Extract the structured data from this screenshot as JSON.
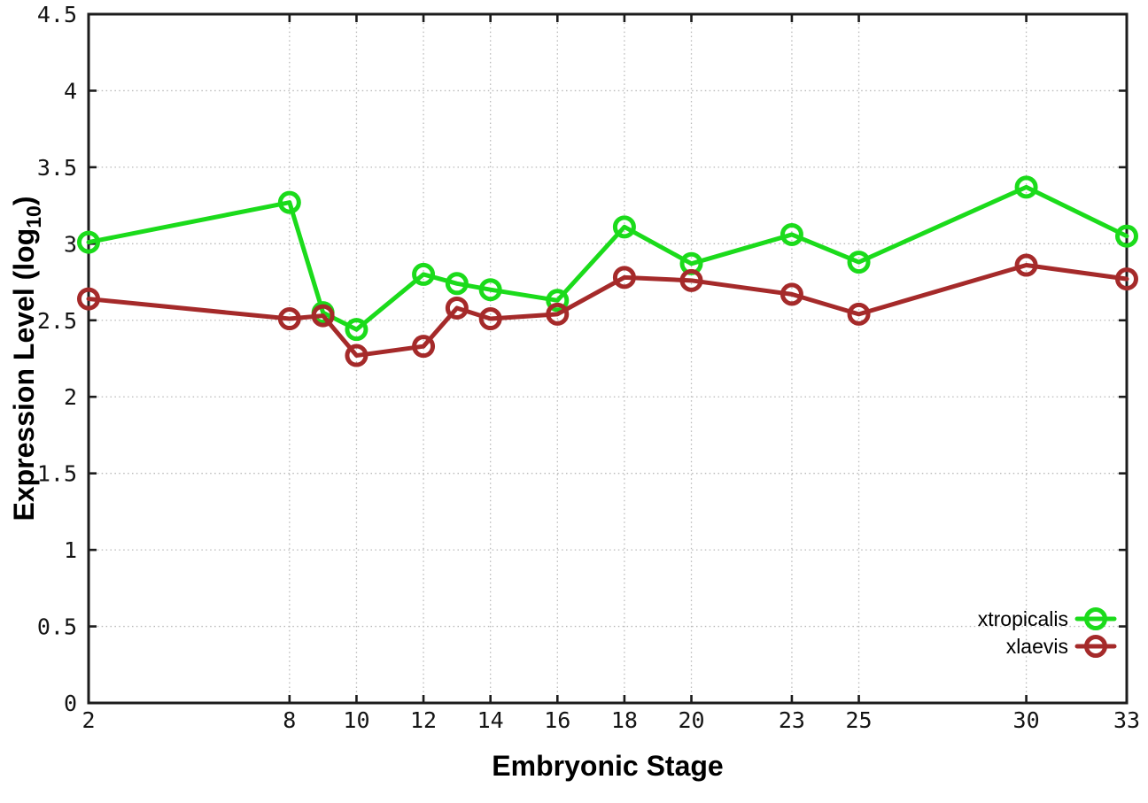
{
  "chart_data": {
    "type": "line",
    "title": "",
    "xlabel": "Embryonic Stage",
    "ylabel": {
      "text": "Expression Level (log",
      "sub": "10",
      "close": ")"
    },
    "x": [
      2,
      8,
      9,
      10,
      12,
      13,
      14,
      16,
      18,
      20,
      23,
      25,
      30,
      33
    ],
    "x_ticks": [
      2,
      8,
      10,
      12,
      14,
      16,
      18,
      20,
      23,
      25,
      30,
      33
    ],
    "x_tick_labels": [
      "2",
      "8",
      "10",
      "12",
      "14",
      "16",
      "18",
      "20",
      "23",
      "25",
      "30",
      "33"
    ],
    "y_ticks": [
      0,
      0.5,
      1,
      1.5,
      2,
      2.5,
      3,
      3.5,
      4,
      4.5
    ],
    "y_tick_labels": [
      "0",
      "0.5",
      "1",
      "1.5",
      "2",
      "2.5",
      "3",
      "3.5",
      "4",
      "4.5"
    ],
    "xlim": [
      2,
      33
    ],
    "ylim": [
      0,
      4.5
    ],
    "grid": true,
    "legend_position": "inside-right-bottom",
    "series": [
      {
        "name": "xtropicalis",
        "color": "#1bdb1b",
        "marker": "open-circle",
        "values": [
          3.01,
          3.27,
          2.55,
          2.44,
          2.8,
          2.74,
          2.7,
          2.63,
          3.11,
          2.87,
          3.06,
          2.88,
          3.37,
          3.05
        ]
      },
      {
        "name": "xlaevis",
        "color": "#a52a2a",
        "marker": "open-circle",
        "values": [
          2.64,
          2.51,
          2.53,
          2.27,
          2.33,
          2.58,
          2.51,
          2.54,
          2.78,
          2.76,
          2.67,
          2.54,
          2.86,
          2.77
        ]
      }
    ],
    "colors": {
      "grid": "#b9b9b9",
      "border": "#1c1c1c",
      "text": "#000000"
    }
  }
}
